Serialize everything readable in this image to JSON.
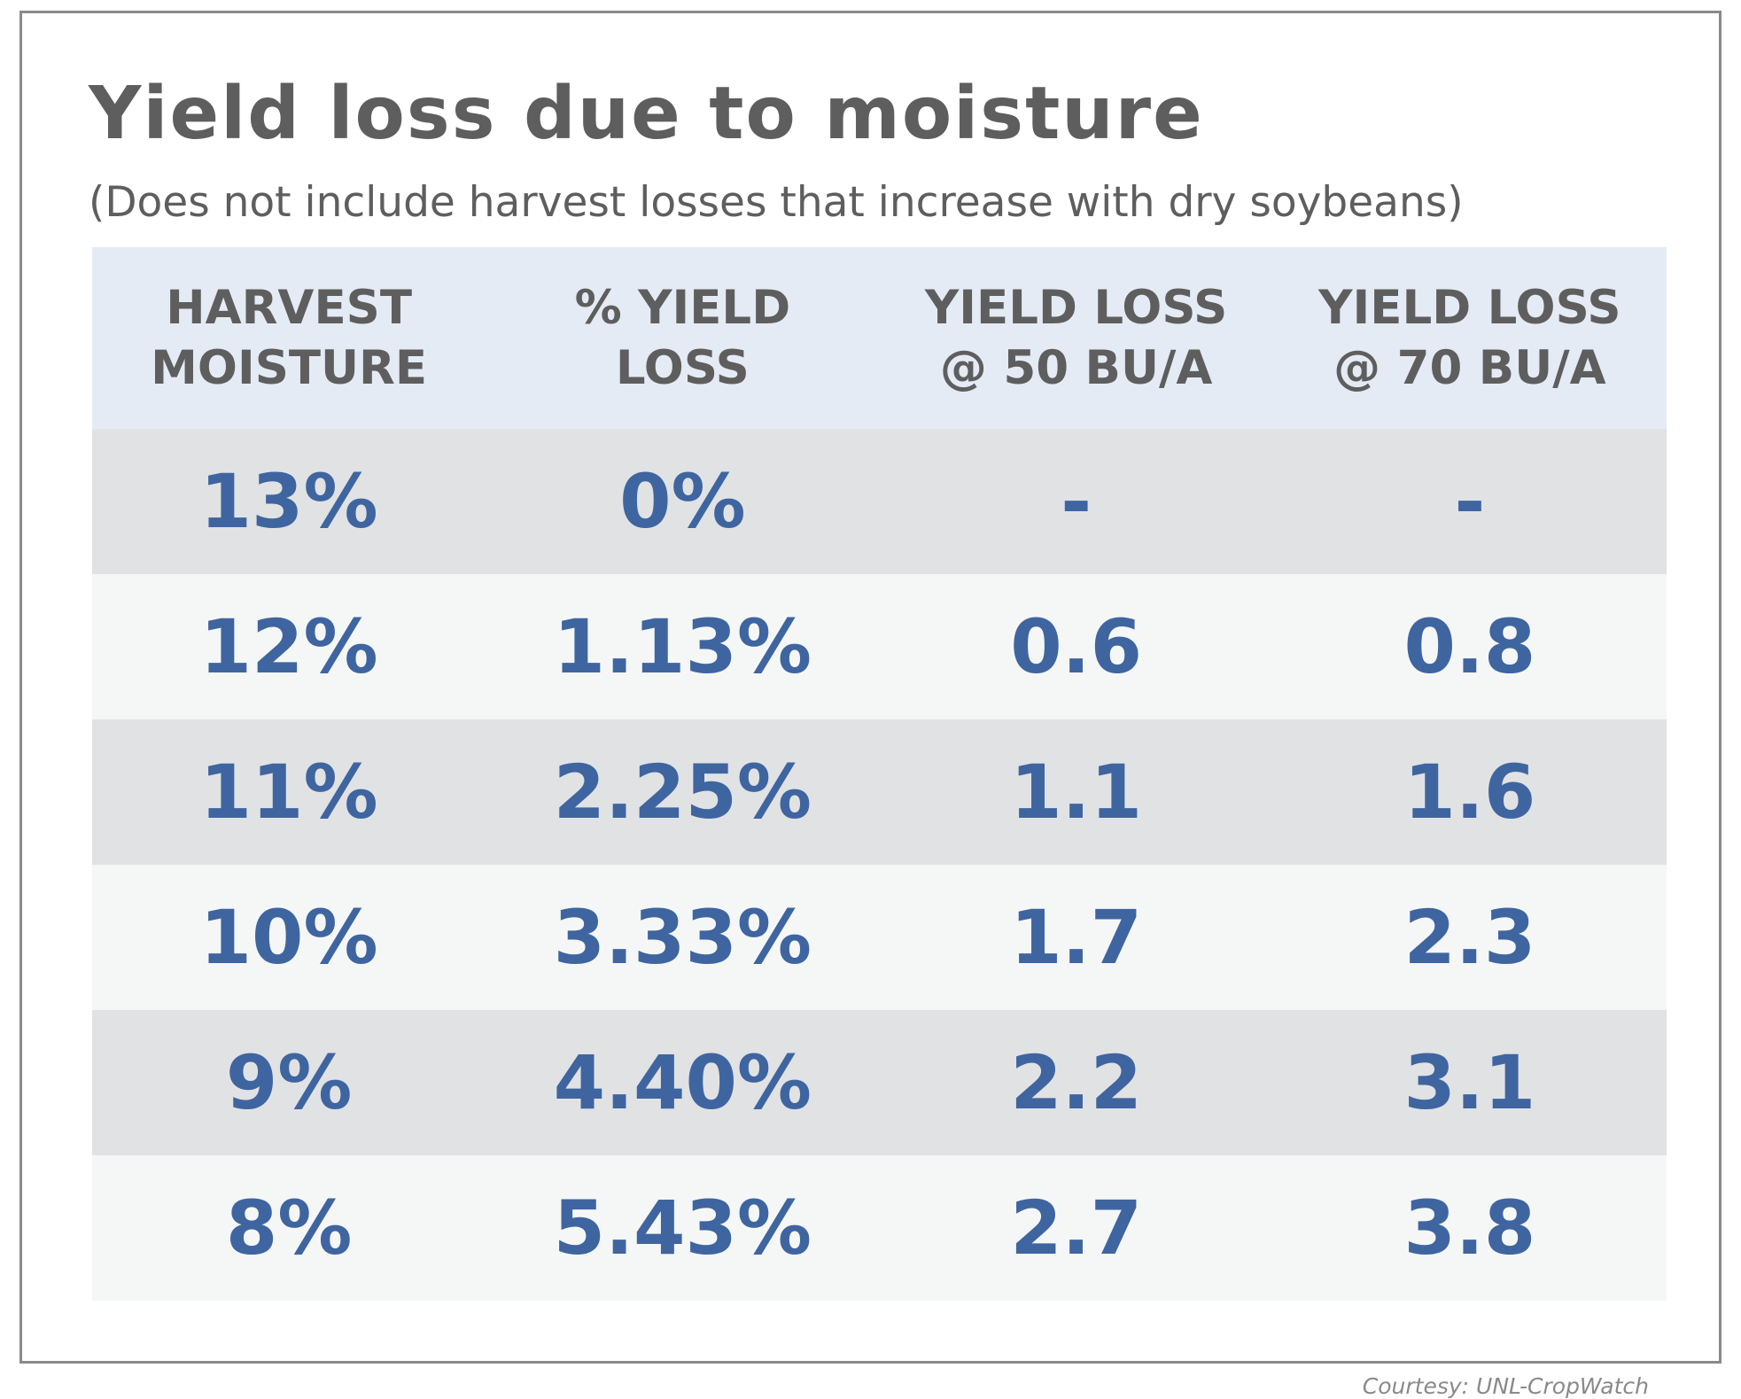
{
  "chart_data": {
    "type": "table",
    "title": "Yield loss due to moisture",
    "subtitle": "(Does not include harvest losses that increase with dry soybeans)",
    "columns": [
      [
        "HARVEST",
        "MOISTURE"
      ],
      [
        "% YIELD",
        "LOSS"
      ],
      [
        "YIELD LOSS",
        "@ 50 BU/A"
      ],
      [
        "YIELD LOSS",
        "@ 70 BU/A"
      ]
    ],
    "rows": [
      [
        "13%",
        "0%",
        "-",
        "-"
      ],
      [
        "12%",
        "1.13%",
        "0.6",
        "0.8"
      ],
      [
        "11%",
        "2.25%",
        "1.1",
        "1.6"
      ],
      [
        "10%",
        "3.33%",
        "1.7",
        "2.3"
      ],
      [
        "9%",
        "4.40%",
        "2.2",
        "3.1"
      ],
      [
        "8%",
        "5.43%",
        "2.7",
        "3.8"
      ]
    ]
  },
  "credit": "Courtesy: UNL-CropWatch",
  "colors": {
    "title_text": "#5e5e5e",
    "header_background": "#e5ebf5",
    "value_text": "#3f65a0",
    "row_shaded": "#e1e2e4",
    "row_light": "#f5f7f7",
    "frame_border": "#8a8a8a"
  }
}
